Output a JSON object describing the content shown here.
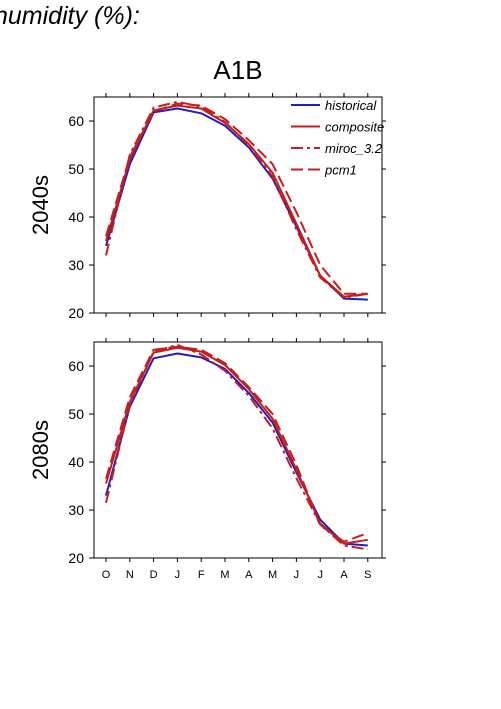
{
  "header": {
    "title_fragment": "humidity (%):",
    "scenario": "A1B"
  },
  "chart_data": [
    {
      "type": "line",
      "row_label": "2040s",
      "categories": [
        "O",
        "N",
        "D",
        "J",
        "F",
        "M",
        "A",
        "M",
        "J",
        "J",
        "A",
        "S"
      ],
      "ylim": [
        20,
        65
      ],
      "yticks": [
        20,
        30,
        40,
        50,
        60
      ],
      "legend_position": "top-right",
      "series": [
        {
          "name": "historical",
          "color": "#1f1fbf",
          "dash": "solid",
          "values": [
            34.0,
            51.0,
            61.8,
            62.6,
            61.6,
            59.0,
            54.5,
            48.0,
            38.0,
            27.8,
            23.0,
            22.8
          ]
        },
        {
          "name": "composite",
          "color": "#c41e1e",
          "dash": "solid",
          "values": [
            35.0,
            52.0,
            62.2,
            63.2,
            62.6,
            59.6,
            55.2,
            49.2,
            38.6,
            27.8,
            23.4,
            24.0
          ]
        },
        {
          "name": "miroc_3.2",
          "color": "#c41e1e",
          "dash": "dashdot",
          "values": [
            32.0,
            53.0,
            62.8,
            64.0,
            63.0,
            59.8,
            55.0,
            48.4,
            37.4,
            27.4,
            23.2,
            24.0
          ]
        },
        {
          "name": "pcm1",
          "color": "#c41e1e",
          "dash": "longdash",
          "values": [
            36.0,
            52.5,
            62.0,
            63.6,
            63.2,
            60.4,
            56.0,
            51.0,
            41.0,
            30.0,
            24.0,
            24.0
          ]
        }
      ]
    },
    {
      "type": "line",
      "row_label": "2080s",
      "categories": [
        "O",
        "N",
        "D",
        "J",
        "F",
        "M",
        "A",
        "M",
        "J",
        "J",
        "A",
        "S"
      ],
      "ylim": [
        20,
        65
      ],
      "yticks": [
        20,
        30,
        40,
        50,
        60
      ],
      "series": [
        {
          "name": "historical",
          "color": "#1f1fbf",
          "dash": "solid",
          "values": [
            33.0,
            51.5,
            61.6,
            62.6,
            61.8,
            59.4,
            54.4,
            48.2,
            37.8,
            28.0,
            23.0,
            22.6
          ]
        },
        {
          "name": "composite",
          "color": "#c41e1e",
          "dash": "solid",
          "values": [
            35.5,
            52.5,
            62.8,
            63.8,
            63.0,
            60.2,
            55.2,
            49.0,
            38.4,
            27.2,
            23.0,
            23.8
          ]
        },
        {
          "name": "miroc_3.2",
          "color": "#c41e1e",
          "dash": "dashdot",
          "values": [
            31.5,
            52.0,
            63.0,
            64.4,
            62.4,
            59.0,
            53.8,
            47.0,
            36.6,
            27.0,
            22.6,
            21.8
          ]
        },
        {
          "name": "pcm1",
          "color": "#c41e1e",
          "dash": "longdash",
          "values": [
            36.5,
            53.5,
            63.4,
            64.0,
            63.4,
            60.6,
            55.6,
            50.0,
            39.4,
            26.8,
            23.4,
            25.2
          ]
        }
      ]
    }
  ]
}
